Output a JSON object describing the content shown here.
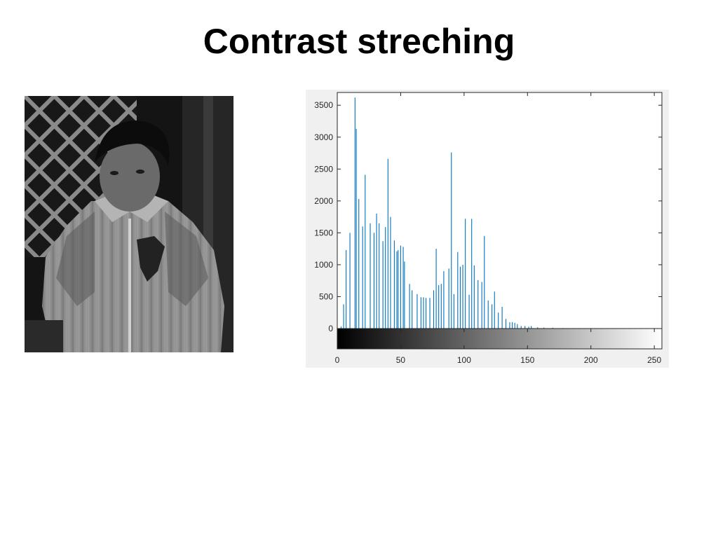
{
  "slide": {
    "title": "Contrast streching"
  },
  "photo": {
    "subject": "grayscale photo of a child in a jacket in front of a lattice fence"
  },
  "colors": {
    "bar": "#0072BD",
    "figure_bg": "#f0f0f0",
    "axes_bg": "#ffffff"
  },
  "chart_data": {
    "type": "bar",
    "title": "",
    "xlabel": "",
    "ylabel": "",
    "xlim": [
      0,
      256
    ],
    "ylim": [
      0,
      3700
    ],
    "xticks": [
      0,
      50,
      100,
      150,
      200,
      250
    ],
    "yticks": [
      0,
      500,
      1000,
      1500,
      2000,
      2500,
      3000,
      3500
    ],
    "grid": false,
    "legend": "none",
    "colorbar": "grayscale gradient 0-255 below axes",
    "x": [
      3,
      5,
      7,
      10,
      14,
      15,
      17,
      20,
      22,
      26,
      29,
      31,
      33,
      36,
      38,
      40,
      42,
      45,
      47,
      48,
      50,
      52,
      53,
      57,
      59,
      63,
      66,
      68,
      70,
      73,
      76,
      78,
      80,
      82,
      84,
      88,
      90,
      92,
      95,
      97,
      99,
      101,
      104,
      106,
      108,
      111,
      114,
      116,
      119,
      122,
      124,
      127,
      130,
      133,
      136,
      138,
      140,
      142,
      145,
      148,
      151,
      153,
      158,
      163,
      170,
      178,
      185,
      195
    ],
    "values": [
      30,
      380,
      1230,
      1500,
      3620,
      3130,
      2030,
      1600,
      2410,
      1650,
      1500,
      1800,
      1650,
      1370,
      1590,
      2660,
      1750,
      1380,
      1210,
      1230,
      1300,
      1280,
      1050,
      700,
      600,
      540,
      490,
      490,
      480,
      480,
      600,
      1250,
      680,
      700,
      900,
      940,
      2760,
      540,
      1200,
      970,
      1000,
      1720,
      530,
      1720,
      990,
      760,
      730,
      1450,
      440,
      380,
      580,
      250,
      340,
      150,
      100,
      100,
      90,
      70,
      40,
      40,
      30,
      40,
      20,
      15,
      12,
      8,
      5,
      3
    ]
  }
}
